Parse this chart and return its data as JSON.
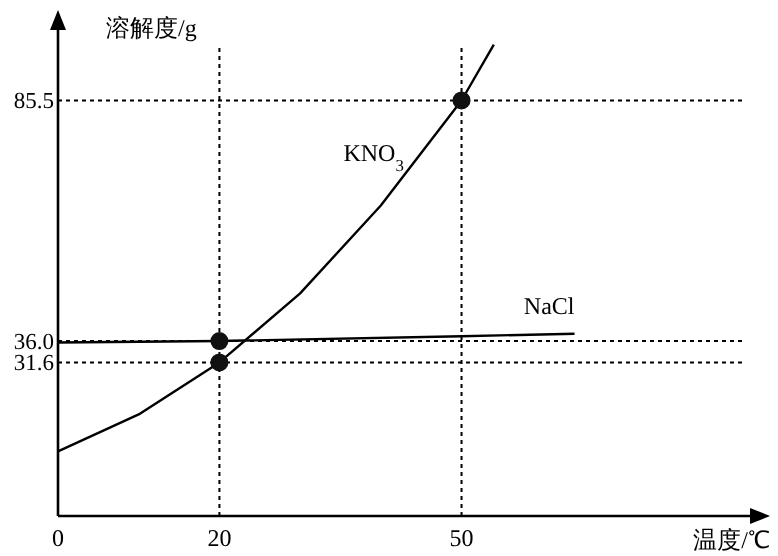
{
  "chart_data": {
    "type": "line",
    "xlabel": "温度/℃",
    "ylabel": "溶解度/g",
    "xlim": [
      0,
      85
    ],
    "ylim": [
      0,
      100
    ],
    "xticks": [
      0,
      20,
      50
    ],
    "yticks": [
      31.6,
      {
        "value": 36,
        "label": "36.0"
      },
      85.5
    ],
    "grid": false,
    "marker": "none",
    "line_style": "solid",
    "series": [
      {
        "name": "KNO$_{3}$",
        "color": "#000000",
        "x": [
          0,
          10,
          20,
          30,
          40,
          50,
          54
        ],
        "values": [
          13.3,
          20.9,
          31.6,
          45.8,
          63.9,
          85.5,
          97
        ]
      },
      {
        "name": "NaCl",
        "color": "#000000",
        "x": [
          0,
          20,
          50,
          64
        ],
        "values": [
          35.7,
          36,
          37,
          37.5
        ]
      },
      {
        "type": "scatter",
        "color": "#111111",
        "marker": "circle",
        "x": [
          20,
          20,
          50
        ],
        "values": [
          36,
          31.6,
          85.5
        ]
      }
    ],
    "ref_lines": [
      {
        "axis": "y",
        "value": 85.5,
        "line_style": "dotted",
        "color": "#000000"
      },
      {
        "axis": "y",
        "value": 36,
        "line_style": "dotted",
        "color": "#000000"
      },
      {
        "axis": "y",
        "value": 31.6,
        "line_style": "dotted",
        "color": "#000000"
      },
      {
        "axis": "x",
        "value": 20,
        "line_style": "dotted",
        "color": "#000000"
      },
      {
        "axis": "x",
        "value": 50,
        "line_style": "dotted",
        "color": "#000000"
      }
    ]
  }
}
